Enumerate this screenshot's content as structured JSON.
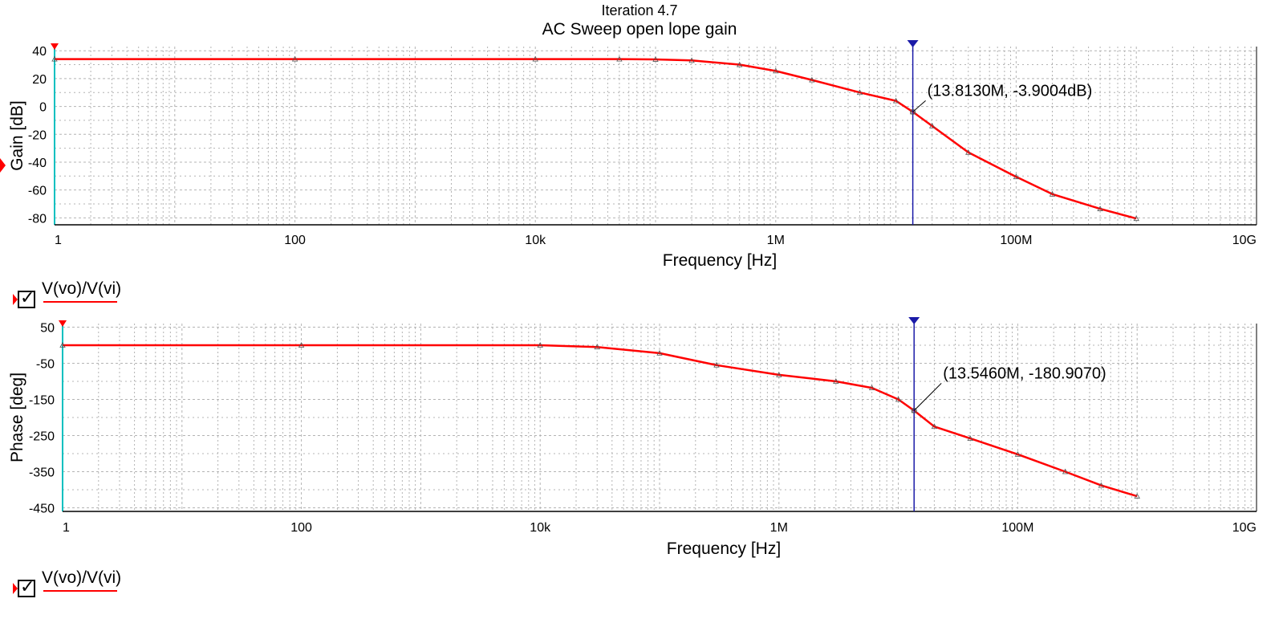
{
  "header": {
    "iteration": "Iteration 4.7",
    "title": "AC Sweep open lope gain"
  },
  "colors": {
    "trace": "#ff0000",
    "cursor": "#1a1aa8",
    "axis_left": "#00c0c0",
    "grid": "#b4b4b4"
  },
  "chart_data": [
    {
      "type": "line",
      "name": "gain",
      "xscale": "log",
      "xlim": [
        1,
        10000000000
      ],
      "ylim": [
        -85,
        43
      ],
      "grid": true,
      "xlabel": "Frequency [Hz]",
      "ylabel": "Gain [dB]",
      "xticks": [
        "1",
        "100",
        "10k",
        "1M",
        "100M",
        "10G"
      ],
      "yticks": [
        40,
        20,
        0,
        -20,
        -40,
        -60,
        -80
      ],
      "legend": "V(vo)/V(vi)",
      "series": [
        {
          "name": "V(vo)/V(vi)",
          "x": [
            1,
            100,
            10000,
            50000,
            100000,
            200000,
            500000,
            1000000,
            2000000,
            5000000,
            10000000,
            13813000,
            20000000,
            40000000,
            100000000,
            200000000,
            500000000,
            1000000000
          ],
          "y": [
            34,
            34,
            34,
            34,
            33.8,
            33,
            30,
            25.5,
            19,
            10,
            4,
            -3.9,
            -14,
            -33,
            -50.5,
            -63,
            -73.5,
            -80.5
          ]
        }
      ],
      "cursor": {
        "x": 13813000,
        "label": "(13.8130M, -3.9004dB)"
      }
    },
    {
      "type": "line",
      "name": "phase",
      "xscale": "log",
      "xlim": [
        1,
        10000000000
      ],
      "ylim": [
        -460,
        60
      ],
      "grid": true,
      "xlabel": "Frequency [Hz]",
      "ylabel": "Phase [deg]",
      "xticks": [
        "1",
        "100",
        "10k",
        "1M",
        "100M",
        "10G"
      ],
      "yticks": [
        50,
        -50,
        -150,
        -250,
        -350,
        -450
      ],
      "legend": "V(vo)/V(vi)",
      "series": [
        {
          "name": "V(vo)/V(vi)",
          "x": [
            1,
            100,
            10000,
            30000,
            100000,
            300000,
            1000000,
            3000000,
            6000000,
            10000000,
            13546000,
            20000000,
            40000000,
            100000000,
            250000000,
            500000000,
            1000000000
          ],
          "y": [
            0,
            0,
            0,
            -5,
            -22,
            -55,
            -82,
            -100,
            -118,
            -150,
            -180.9,
            -225,
            -258,
            -302,
            -350,
            -388,
            -418
          ]
        }
      ],
      "cursor": {
        "x": 13546000,
        "label": "(13.5460M, -180.9070)"
      }
    }
  ]
}
